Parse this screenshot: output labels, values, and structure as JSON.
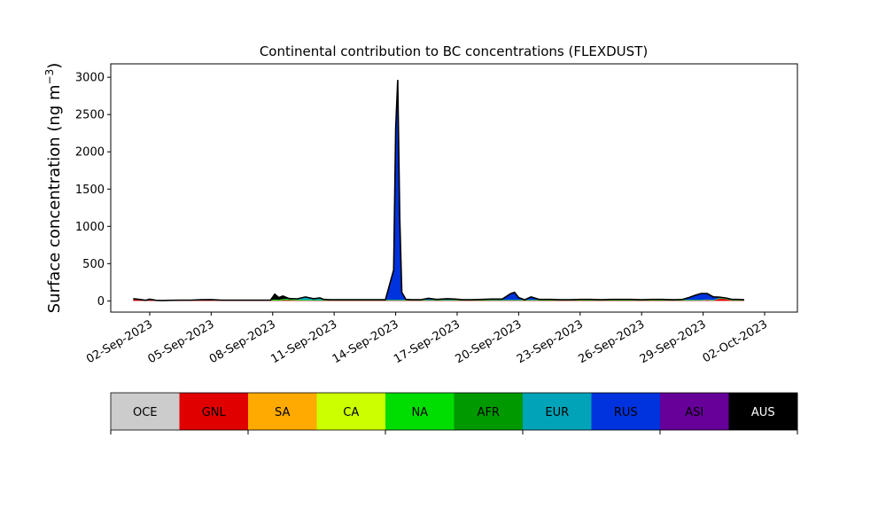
{
  "chart_data": {
    "type": "area",
    "title": "Continental contribution to BC concentrations (FLEXDUST)",
    "ylabel": "Surface concentration (ng m",
    "ylabel_sup": "−3",
    "ylabel_close": ")",
    "xlabel": "",
    "x_tick_labels": [
      "02-Sep-2023",
      "05-Sep-2023",
      "08-Sep-2023",
      "11-Sep-2023",
      "14-Sep-2023",
      "17-Sep-2023",
      "20-Sep-2023",
      "23-Sep-2023",
      "26-Sep-2023",
      "29-Sep-2023",
      "02-Oct-2023"
    ],
    "x_tick_days": [
      2,
      5,
      8,
      11,
      14,
      17,
      20,
      23,
      26,
      29,
      32
    ],
    "x_range_days": [
      0.1,
      33.6
    ],
    "ylim": [
      -150,
      3180
    ],
    "y_ticks": [
      0,
      500,
      1000,
      1500,
      2000,
      2500,
      3000
    ],
    "grid": false,
    "legend": "colorbar below plot",
    "series_order_bottom_to_top": [
      "OCE",
      "GNL",
      "SA",
      "CA",
      "NA",
      "AFR",
      "EUR",
      "RUS",
      "ASI",
      "AUS"
    ],
    "series_colors": {
      "OCE": "#cccccc",
      "GNL": "#e00000",
      "SA": "#ffaa00",
      "CA": "#ccff00",
      "NA": "#00dd00",
      "AFR": "#009900",
      "EUR": "#00a3b8",
      "RUS": "#0033dd",
      "ASI": "#660099",
      "AUS": "#000000"
    },
    "x": [
      1.2,
      1.5,
      1.8,
      2.0,
      2.3,
      2.6,
      3.0,
      3.5,
      4.0,
      4.5,
      5.0,
      5.5,
      6.0,
      6.5,
      7.0,
      7.5,
      7.9,
      8.1,
      8.3,
      8.5,
      8.8,
      9.2,
      9.6,
      10.0,
      10.3,
      10.5,
      10.8,
      11.0,
      11.3,
      11.6,
      12.0,
      12.5,
      13.0,
      13.5,
      13.9,
      14.0,
      14.1,
      14.2,
      14.3,
      14.5,
      14.8,
      15.2,
      15.6,
      16.0,
      16.5,
      16.9,
      17.3,
      17.7,
      18.2,
      18.7,
      19.2,
      19.6,
      19.8,
      20.0,
      20.3,
      20.6,
      21.0,
      21.3,
      21.6,
      22.0,
      22.5,
      23.0,
      23.5,
      24.0,
      24.5,
      25.0,
      25.5,
      26.0,
      26.5,
      27.0,
      27.5,
      28.0,
      28.3,
      28.6,
      28.9,
      29.2,
      29.5,
      29.8,
      30.1,
      30.4,
      30.7,
      31.0
    ],
    "series": [
      {
        "name": "GNL",
        "values": [
          25,
          15,
          5,
          20,
          5,
          3,
          5,
          5,
          5,
          10,
          10,
          5,
          5,
          5,
          5,
          5,
          5,
          5,
          5,
          10,
          10,
          8,
          5,
          5,
          5,
          5,
          5,
          5,
          5,
          5,
          5,
          5,
          5,
          5,
          5,
          5,
          5,
          5,
          5,
          5,
          5,
          5,
          5,
          5,
          5,
          5,
          5,
          5,
          5,
          5,
          5,
          5,
          5,
          5,
          5,
          5,
          5,
          5,
          5,
          5,
          5,
          5,
          5,
          5,
          5,
          5,
          5,
          5,
          5,
          5,
          5,
          5,
          5,
          5,
          5,
          10,
          5,
          30,
          25,
          5,
          5,
          5
        ]
      },
      {
        "name": "NA",
        "values": [
          5,
          5,
          3,
          3,
          3,
          3,
          3,
          5,
          5,
          5,
          8,
          5,
          5,
          5,
          5,
          5,
          5,
          15,
          10,
          15,
          12,
          10,
          8,
          5,
          5,
          5,
          5,
          5,
          5,
          5,
          5,
          5,
          5,
          5,
          5,
          5,
          5,
          5,
          5,
          5,
          5,
          5,
          5,
          5,
          5,
          5,
          5,
          5,
          5,
          5,
          5,
          5,
          5,
          5,
          5,
          5,
          5,
          5,
          5,
          5,
          5,
          5,
          5,
          5,
          5,
          5,
          5,
          5,
          5,
          5,
          5,
          5,
          5,
          5,
          5,
          5,
          5,
          5,
          5,
          5,
          5,
          5
        ]
      },
      {
        "name": "EUR",
        "values": [
          0,
          0,
          0,
          0,
          0,
          0,
          0,
          0,
          0,
          0,
          0,
          0,
          0,
          0,
          0,
          0,
          0,
          0,
          0,
          0,
          10,
          10,
          40,
          20,
          30,
          10,
          5,
          5,
          5,
          5,
          5,
          5,
          5,
          5,
          5,
          5,
          5,
          5,
          5,
          5,
          5,
          5,
          5,
          5,
          5,
          5,
          5,
          5,
          5,
          5,
          5,
          5,
          5,
          5,
          5,
          5,
          5,
          5,
          5,
          5,
          5,
          5,
          5,
          5,
          5,
          5,
          5,
          5,
          5,
          5,
          5,
          5,
          5,
          5,
          5,
          5,
          5,
          5,
          5,
          5,
          5,
          5
        ]
      },
      {
        "name": "RUS",
        "values": [
          0,
          0,
          0,
          0,
          0,
          0,
          0,
          0,
          0,
          0,
          0,
          0,
          0,
          0,
          0,
          0,
          0,
          0,
          0,
          0,
          0,
          0,
          0,
          0,
          0,
          0,
          0,
          0,
          0,
          0,
          0,
          0,
          0,
          0,
          400,
          2300,
          2950,
          1100,
          100,
          5,
          0,
          0,
          20,
          5,
          15,
          10,
          0,
          0,
          5,
          10,
          10,
          80,
          100,
          30,
          0,
          40,
          5,
          5,
          5,
          0,
          0,
          5,
          5,
          0,
          5,
          5,
          5,
          0,
          5,
          5,
          0,
          5,
          30,
          60,
          85,
          80,
          40,
          10,
          5,
          5,
          5,
          0
        ]
      },
      {
        "name": "AUS",
        "values": [
          0,
          0,
          0,
          0,
          0,
          0,
          0,
          0,
          0,
          0,
          0,
          0,
          0,
          0,
          0,
          0,
          0,
          70,
          30,
          40,
          0,
          0,
          0,
          0,
          0,
          0,
          0,
          0,
          0,
          0,
          0,
          0,
          0,
          0,
          0,
          0,
          0,
          0,
          0,
          0,
          0,
          0,
          0,
          0,
          0,
          0,
          0,
          0,
          0,
          0,
          0,
          0,
          0,
          0,
          0,
          0,
          0,
          0,
          0,
          0,
          0,
          0,
          0,
          0,
          0,
          0,
          0,
          0,
          0,
          0,
          0,
          0,
          0,
          0,
          0,
          0,
          0,
          0,
          0,
          0,
          0,
          0
        ]
      }
    ]
  },
  "colorbar": {
    "labels": [
      "OCE",
      "GNL",
      "SA",
      "CA",
      "NA",
      "AFR",
      "EUR",
      "RUS",
      "ASI",
      "AUS"
    ],
    "label_colors": [
      "#000000",
      "#000000",
      "#000000",
      "#000000",
      "#000000",
      "#000000",
      "#000000",
      "#000000",
      "#000000",
      "#ffffff"
    ]
  }
}
